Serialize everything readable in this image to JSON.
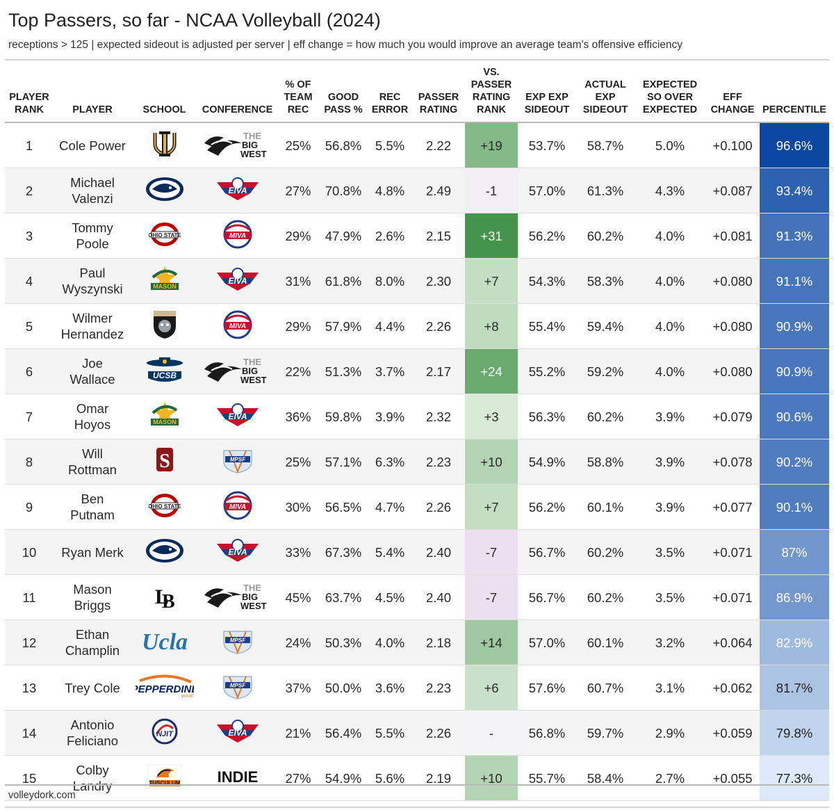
{
  "title": "Top Passers, so far - NCAA Volleyball (2024)",
  "subtitle": "receptions > 125 | expected sideout is adjusted per server | eff change = how much you would improve an average team's offensive efficiency",
  "footer": "volleydork.com",
  "colors": {
    "pos_dark": "#45944c",
    "neutral": "#f4f4f6",
    "neg": "#ece0f0",
    "pct_dark": "#0b47a3",
    "pct_light": "#e6f1fc"
  },
  "columns": [
    {
      "key": "rank",
      "label": "PLAYER RANK"
    },
    {
      "key": "player",
      "label": "PLAYER"
    },
    {
      "key": "school",
      "label": "SCHOOL"
    },
    {
      "key": "conf",
      "label": "CONFERENCE"
    },
    {
      "key": "pct_team_rec",
      "label": "% OF TEAM REC"
    },
    {
      "key": "good_pass",
      "label": "GOOD PASS %"
    },
    {
      "key": "rec_error",
      "label": "REC ERROR"
    },
    {
      "key": "passer_rating",
      "label": "PASSER RATING"
    },
    {
      "key": "vs_rank",
      "label": "VS. PASSER RATING RANK"
    },
    {
      "key": "exp_exp_so",
      "label": "EXP EXP SIDEOUT"
    },
    {
      "key": "actual_exp_so",
      "label": "ACTUAL EXP SIDEOUT"
    },
    {
      "key": "so_over_exp",
      "label": "EXPECTED SO OVER EXPECTED"
    },
    {
      "key": "eff_change",
      "label": "EFF CHANGE"
    },
    {
      "key": "percentile",
      "label": "PERCENTILE"
    }
  ],
  "rows": [
    {
      "rank": "1",
      "player": "Cole Power",
      "school_logo": "uc-irvine-logo",
      "conf_logo": "big-west-logo",
      "pct_team_rec": "25%",
      "good_pass": "56.8%",
      "rec_error": "5.5%",
      "passer_rating": "2.22",
      "vs_rank": "+19",
      "vs_rank_value": 19,
      "exp_exp_so": "53.7%",
      "actual_exp_so": "58.7%",
      "so_over_exp": "5.0%",
      "eff_change": "+0.100",
      "percentile": "96.6%",
      "percentile_value": 96.6
    },
    {
      "rank": "2",
      "player": "Michael Valenzi",
      "school_logo": "penn-state-logo",
      "conf_logo": "eiva-logo",
      "pct_team_rec": "27%",
      "good_pass": "70.8%",
      "rec_error": "4.8%",
      "passer_rating": "2.49",
      "vs_rank": "-1",
      "vs_rank_value": -1,
      "exp_exp_so": "57.0%",
      "actual_exp_so": "61.3%",
      "so_over_exp": "4.3%",
      "eff_change": "+0.087",
      "percentile": "93.4%",
      "percentile_value": 93.4
    },
    {
      "rank": "3",
      "player": "Tommy Poole",
      "school_logo": "ohio-state-logo",
      "conf_logo": "miva-logo",
      "pct_team_rec": "29%",
      "good_pass": "47.9%",
      "rec_error": "2.6%",
      "passer_rating": "2.15",
      "vs_rank": "+31",
      "vs_rank_value": 31,
      "exp_exp_so": "56.2%",
      "actual_exp_so": "60.2%",
      "so_over_exp": "4.0%",
      "eff_change": "+0.081",
      "percentile": "91.3%",
      "percentile_value": 91.3
    },
    {
      "rank": "4",
      "player": "Paul Wyszynski",
      "school_logo": "george-mason-logo",
      "conf_logo": "eiva-logo",
      "pct_team_rec": "31%",
      "good_pass": "61.8%",
      "rec_error": "8.0%",
      "passer_rating": "2.30",
      "vs_rank": "+7",
      "vs_rank_value": 7,
      "exp_exp_so": "54.3%",
      "actual_exp_so": "58.3%",
      "so_over_exp": "4.0%",
      "eff_change": "+0.080",
      "percentile": "91.1%",
      "percentile_value": 91.1
    },
    {
      "rank": "5",
      "player": "Wilmer Hernandez",
      "school_logo": "purdue-fort-wayne-logo",
      "conf_logo": "miva-logo",
      "pct_team_rec": "29%",
      "good_pass": "57.9%",
      "rec_error": "4.4%",
      "passer_rating": "2.26",
      "vs_rank": "+8",
      "vs_rank_value": 8,
      "exp_exp_so": "55.4%",
      "actual_exp_so": "59.4%",
      "so_over_exp": "4.0%",
      "eff_change": "+0.080",
      "percentile": "90.9%",
      "percentile_value": 90.9
    },
    {
      "rank": "6",
      "player": "Joe Wallace",
      "school_logo": "ucsb-logo",
      "conf_logo": "big-west-logo",
      "pct_team_rec": "22%",
      "good_pass": "51.3%",
      "rec_error": "3.7%",
      "passer_rating": "2.17",
      "vs_rank": "+24",
      "vs_rank_value": 24,
      "exp_exp_so": "55.2%",
      "actual_exp_so": "59.2%",
      "so_over_exp": "4.0%",
      "eff_change": "+0.080",
      "percentile": "90.9%",
      "percentile_value": 90.9
    },
    {
      "rank": "7",
      "player": "Omar Hoyos",
      "school_logo": "george-mason-logo",
      "conf_logo": "eiva-logo",
      "pct_team_rec": "36%",
      "good_pass": "59.8%",
      "rec_error": "3.9%",
      "passer_rating": "2.32",
      "vs_rank": "+3",
      "vs_rank_value": 3,
      "exp_exp_so": "56.3%",
      "actual_exp_so": "60.2%",
      "so_over_exp": "3.9%",
      "eff_change": "+0.079",
      "percentile": "90.6%",
      "percentile_value": 90.6
    },
    {
      "rank": "8",
      "player": "Will Rottman",
      "school_logo": "stanford-logo",
      "conf_logo": "mpsf-logo",
      "pct_team_rec": "25%",
      "good_pass": "57.1%",
      "rec_error": "6.3%",
      "passer_rating": "2.23",
      "vs_rank": "+10",
      "vs_rank_value": 10,
      "exp_exp_so": "54.9%",
      "actual_exp_so": "58.8%",
      "so_over_exp": "3.9%",
      "eff_change": "+0.078",
      "percentile": "90.2%",
      "percentile_value": 90.2
    },
    {
      "rank": "9",
      "player": "Ben Putnam",
      "school_logo": "ohio-state-logo",
      "conf_logo": "miva-logo",
      "pct_team_rec": "30%",
      "good_pass": "56.5%",
      "rec_error": "4.7%",
      "passer_rating": "2.26",
      "vs_rank": "+7",
      "vs_rank_value": 7,
      "exp_exp_so": "56.2%",
      "actual_exp_so": "60.1%",
      "so_over_exp": "3.9%",
      "eff_change": "+0.077",
      "percentile": "90.1%",
      "percentile_value": 90.1
    },
    {
      "rank": "10",
      "player": "Ryan Merk",
      "school_logo": "penn-state-logo",
      "conf_logo": "eiva-logo",
      "pct_team_rec": "33%",
      "good_pass": "67.3%",
      "rec_error": "5.4%",
      "passer_rating": "2.40",
      "vs_rank": "-7",
      "vs_rank_value": -7,
      "exp_exp_so": "56.7%",
      "actual_exp_so": "60.2%",
      "so_over_exp": "3.5%",
      "eff_change": "+0.071",
      "percentile": "87%",
      "percentile_value": 87
    },
    {
      "rank": "11",
      "player": "Mason Briggs",
      "school_logo": "long-beach-state-logo",
      "conf_logo": "big-west-logo",
      "pct_team_rec": "45%",
      "good_pass": "63.7%",
      "rec_error": "4.5%",
      "passer_rating": "2.40",
      "vs_rank": "-7",
      "vs_rank_value": -7,
      "exp_exp_so": "56.7%",
      "actual_exp_so": "60.2%",
      "so_over_exp": "3.5%",
      "eff_change": "+0.071",
      "percentile": "86.9%",
      "percentile_value": 86.9
    },
    {
      "rank": "12",
      "player": "Ethan Champlin",
      "school_logo": "ucla-logo",
      "conf_logo": "mpsf-logo",
      "pct_team_rec": "24%",
      "good_pass": "50.3%",
      "rec_error": "4.0%",
      "passer_rating": "2.18",
      "vs_rank": "+14",
      "vs_rank_value": 14,
      "exp_exp_so": "57.0%",
      "actual_exp_so": "60.1%",
      "so_over_exp": "3.2%",
      "eff_change": "+0.064",
      "percentile": "82.9%",
      "percentile_value": 82.9
    },
    {
      "rank": "13",
      "player": "Trey Cole",
      "school_logo": "pepperdine-logo",
      "conf_logo": "mpsf-logo",
      "pct_team_rec": "37%",
      "good_pass": "50.0%",
      "rec_error": "3.6%",
      "passer_rating": "2.23",
      "vs_rank": "+6",
      "vs_rank_value": 6,
      "exp_exp_so": "57.6%",
      "actual_exp_so": "60.7%",
      "so_over_exp": "3.1%",
      "eff_change": "+0.062",
      "percentile": "81.7%",
      "percentile_value": 81.7
    },
    {
      "rank": "14",
      "player": "Antonio Feliciano",
      "school_logo": "njit-logo",
      "conf_logo": "eiva-logo",
      "pct_team_rec": "21%",
      "good_pass": "56.4%",
      "rec_error": "5.5%",
      "passer_rating": "2.26",
      "vs_rank": "-",
      "vs_rank_value": 0,
      "exp_exp_so": "56.8%",
      "actual_exp_so": "59.7%",
      "so_over_exp": "2.9%",
      "eff_change": "+0.059",
      "percentile": "79.8%",
      "percentile_value": 79.8
    },
    {
      "rank": "15",
      "player": "Colby Landry",
      "school_logo": "tusculum-logo",
      "conf_logo": "indie-logo",
      "pct_team_rec": "27%",
      "good_pass": "54.9%",
      "rec_error": "5.6%",
      "passer_rating": "2.19",
      "vs_rank": "+10",
      "vs_rank_value": 10,
      "exp_exp_so": "55.7%",
      "actual_exp_so": "58.4%",
      "so_over_exp": "2.7%",
      "eff_change": "+0.055",
      "percentile": "77.3%",
      "percentile_value": 77.3
    }
  ]
}
